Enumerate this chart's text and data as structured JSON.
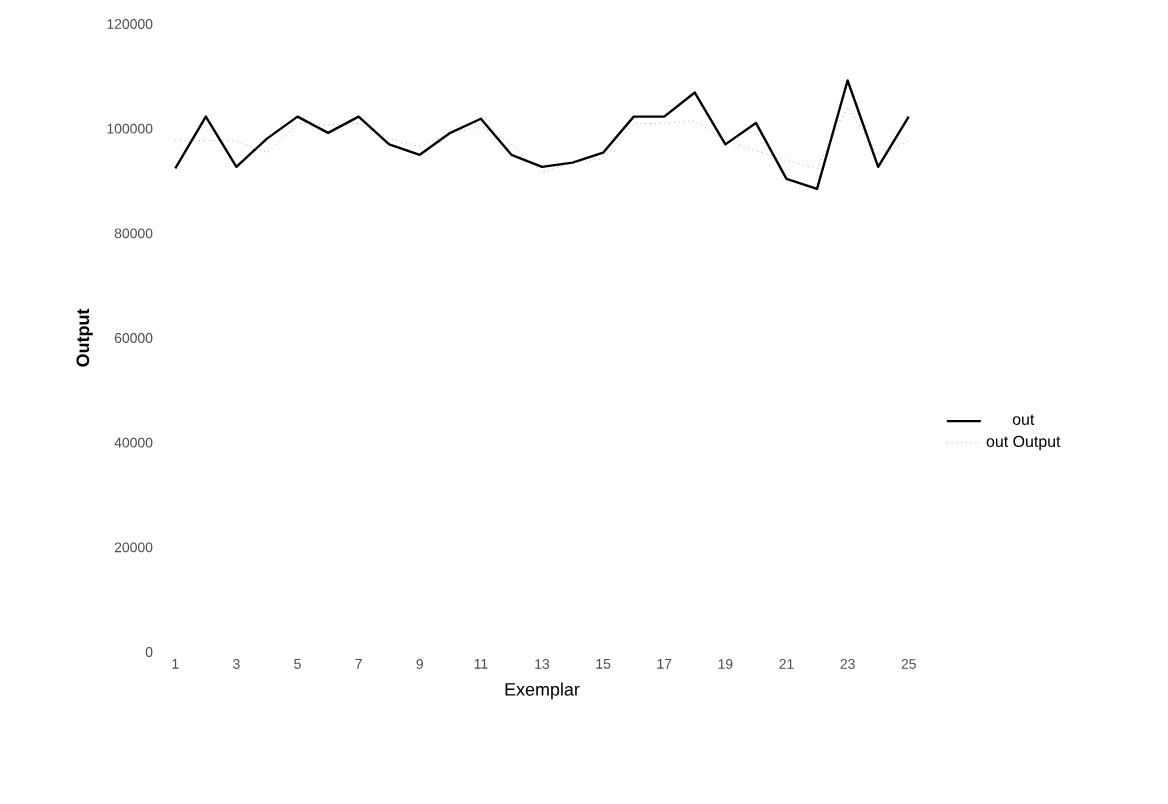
{
  "chart_data": {
    "type": "line",
    "xlabel": "Exemplar",
    "ylabel": "Output",
    "categories": [
      "1",
      null,
      "3",
      null,
      "5",
      null,
      "7",
      null,
      "9",
      null,
      "11",
      null,
      "13",
      null,
      "15",
      null,
      "17",
      null,
      "19",
      null,
      "21",
      null,
      "23",
      null,
      "25"
    ],
    "series": [
      {
        "name": "out",
        "color": "#000000",
        "line_style": "solid",
        "values": [
          92400,
          102300,
          92700,
          98100,
          102300,
          99200,
          102300,
          97000,
          95000,
          99200,
          101900,
          95000,
          92700,
          93500,
          95400,
          102300,
          102300,
          106900,
          97000,
          101100,
          90400,
          88500,
          109200,
          92700,
          102300
        ]
      },
      {
        "name": "out Output",
        "color": "#808080",
        "line_style": "dotted",
        "values": [
          97700,
          97700,
          97700,
          95400,
          101000,
          100700,
          101000,
          98100,
          96600,
          99200,
          100400,
          97000,
          91600,
          93500,
          94300,
          101000,
          101000,
          101500,
          97700,
          95800,
          93900,
          92400,
          104200,
          95000,
          97700
        ]
      }
    ],
    "ylim": [
      0,
      120000
    ],
    "yticks": [
      0,
      20000,
      40000,
      60000,
      80000,
      100000,
      120000
    ],
    "grid": false,
    "legend": "right",
    "marker": "none"
  }
}
